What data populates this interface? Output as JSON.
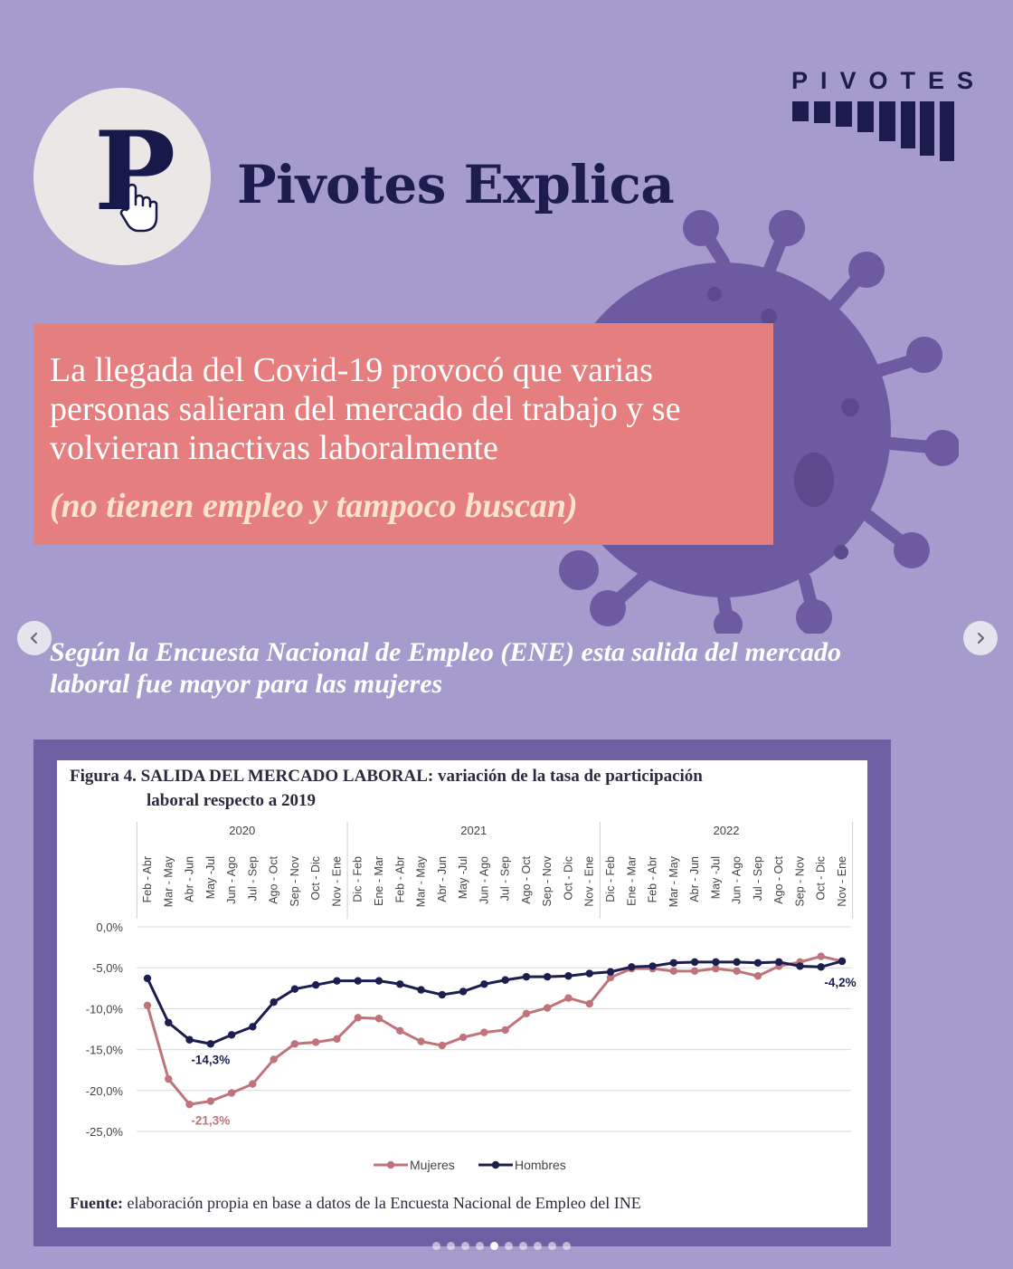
{
  "header": {
    "title": "Pivotes Explica",
    "brand": "PIVOTES"
  },
  "intro": {
    "text": "La llegada del Covid-19 provocó que varias personas salieran del mercado del trabajo y se volvieran inactivas laboralmente",
    "note": "(no tienen empleo y tampoco buscan)"
  },
  "subtitle": "Según la Encuesta Nacional de Empleo (ENE) esta salida del mercado laboral fue mayor para las mujeres",
  "figure": {
    "title_line1": "Figura 4. SALIDA DEL MERCADO LABORAL: variación de la tasa de participación",
    "title_line2": "laboral respecto a 2019",
    "source_label": "Fuente:",
    "source_text": " elaboración propia en base a datos de la Encuesta Nacional de Empleo del INE"
  },
  "carousel": {
    "slides": 10,
    "active": 4
  },
  "colors": {
    "background": "#a59ccd",
    "pink_box": "#e57e7f",
    "navy": "#1c1d4c",
    "mujeres": "#c0737b",
    "hombres": "#1b1e4e",
    "frame": "#6f5fa3"
  },
  "icons": {
    "prev": "chevron-left-icon",
    "next": "chevron-right-icon"
  },
  "chart_data": {
    "type": "line",
    "years": [
      {
        "label": "2020",
        "start": 0,
        "end": 9
      },
      {
        "label": "2021",
        "start": 10,
        "end": 21
      },
      {
        "label": "2022",
        "start": 22,
        "end": 33
      }
    ],
    "categories": [
      "Feb - Abr",
      "Mar - May",
      "Abr - Jun",
      "May -Jul",
      "Jun - Ago",
      "Jul - Sep",
      "Ago - Oct",
      "Sep - Nov",
      "Oct - Dic",
      "Nov - Ene",
      "Dic - Feb",
      "Ene - Mar",
      "Feb - Abr",
      "Mar - May",
      "Abr - Jun",
      "May -Jul",
      "Jun - Ago",
      "Jul - Sep",
      "Ago - Oct",
      "Sep - Nov",
      "Oct - Dic",
      "Nov - Ene",
      "Dic - Feb",
      "Ene - Mar",
      "Feb - Abr",
      "Mar - May",
      "Abr - Jun",
      "May -Jul",
      "Jun - Ago",
      "Jul - Sep",
      "Ago - Oct",
      "Sep - Nov",
      "Oct - Dic",
      "Nov - Ene"
    ],
    "y_ticks": [
      "0,0%",
      "-5,0%",
      "-10,0%",
      "-15,0%",
      "-20,0%",
      "-25,0%"
    ],
    "ylim": [
      -25,
      0
    ],
    "series": [
      {
        "name": "Mujeres",
        "color": "#c0737b",
        "values": [
          -9.6,
          -18.6,
          -21.7,
          -21.3,
          -20.3,
          -19.2,
          -16.2,
          -14.3,
          -14.1,
          -13.7,
          -11.1,
          -11.2,
          -12.7,
          -14.0,
          -14.5,
          -13.5,
          -12.9,
          -12.6,
          -10.6,
          -9.9,
          -8.7,
          -9.4,
          -6.2,
          -5.1,
          -5.1,
          -5.4,
          -5.4,
          -5.1,
          -5.4,
          -6.0,
          -4.8,
          -4.3,
          -3.6,
          -4.2
        ]
      },
      {
        "name": "Hombres",
        "color": "#1b1e4e",
        "values": [
          -6.3,
          -11.7,
          -13.8,
          -14.3,
          -13.2,
          -12.2,
          -9.2,
          -7.6,
          -7.1,
          -6.6,
          -6.6,
          -6.6,
          -7.0,
          -7.7,
          -8.3,
          -7.9,
          -7.0,
          -6.5,
          -6.1,
          -6.1,
          -6.0,
          -5.7,
          -5.5,
          -4.9,
          -4.8,
          -4.4,
          -4.3,
          -4.3,
          -4.3,
          -4.4,
          -4.3,
          -4.8,
          -4.9,
          -4.2
        ]
      }
    ],
    "annotations": [
      "-14,3%",
      "-21,3%",
      "-4,2%"
    ],
    "legend": "bottom",
    "grid": true
  }
}
